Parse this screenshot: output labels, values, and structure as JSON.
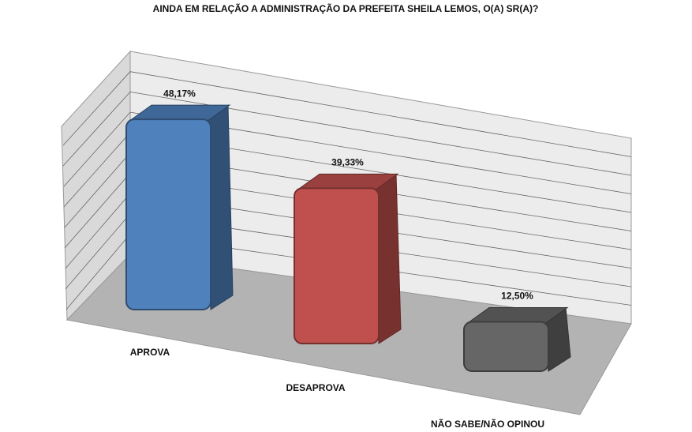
{
  "chart_data": {
    "type": "bar3d",
    "title": "AINDA EM RELAÇÃO A ADMINISTRAÇÃO DA PREFEITA SHEILA LEMOS, O(A) SR(A)?",
    "categories": [
      "APROVA",
      "DESAPROVA",
      "NÃO SABE/NÃO OPINOU"
    ],
    "values": [
      48.17,
      39.33,
      12.5
    ],
    "value_labels": [
      "48,17%",
      "39,33%",
      "12,50%"
    ],
    "colors": [
      "#4f81bd",
      "#c0504d",
      "#666666"
    ],
    "ylim": [
      0,
      50
    ]
  }
}
